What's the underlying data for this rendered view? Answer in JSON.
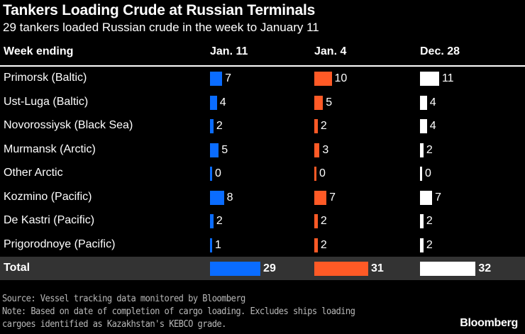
{
  "chart_data": {
    "type": "table",
    "title": "Tankers Loading Crude at Russian Terminals",
    "subtitle": "29 tankers loaded Russian crude in the week to January 11",
    "row_header": "Week ending",
    "columns": [
      "Jan. 11",
      "Jan. 4",
      "Dec. 28"
    ],
    "colors": [
      "#0a6cff",
      "#ff5a26",
      "#ffffff"
    ],
    "rows": [
      {
        "label": "Primorsk (Baltic)",
        "values": [
          7,
          10,
          11
        ]
      },
      {
        "label": "Ust-Luga (Baltic)",
        "values": [
          4,
          5,
          4
        ]
      },
      {
        "label": "Novorossiysk (Black Sea)",
        "values": [
          2,
          2,
          4
        ]
      },
      {
        "label": "Murmansk (Arctic)",
        "values": [
          5,
          3,
          2
        ]
      },
      {
        "label": "Other Arctic",
        "values": [
          0,
          0,
          0
        ]
      },
      {
        "label": "Kozmino (Pacific)",
        "values": [
          8,
          7,
          7
        ]
      },
      {
        "label": "De Kastri (Pacific)",
        "values": [
          2,
          2,
          2
        ]
      },
      {
        "label": "Prigorodnoye (Pacific)",
        "values": [
          1,
          2,
          2
        ]
      }
    ],
    "total": {
      "label": "Total",
      "values": [
        29,
        31,
        32
      ]
    }
  },
  "footer": {
    "source": "Source: Vessel tracking data monitored by Bloomberg",
    "note1": "Note: Based on date of completion of cargo loading. Excludes ships loading",
    "note2": "cargoes identified as Kazakhstan's KEBCO grade.",
    "logo": "Bloomberg"
  }
}
